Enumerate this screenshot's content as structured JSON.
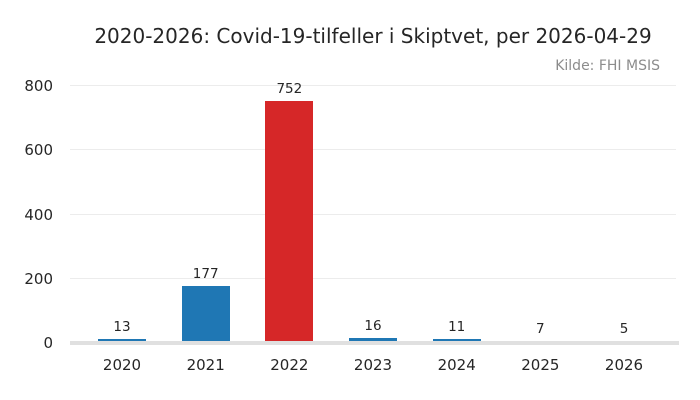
{
  "header": {
    "title": "2020-2026: Covid-19-tilfeller i Skiptvet, per 2026-04-29",
    "source": "Kilde: FHI MSIS"
  },
  "colors": {
    "bar_default": "#1f77b4",
    "bar_highlight": "#d62728",
    "grid": "#ececec",
    "zero_line": "#e0e0e0",
    "text": "#262626",
    "muted_text": "#8c8c8c",
    "background": "#ffffff"
  },
  "chart_data": {
    "type": "bar",
    "title": "2020-2026: Covid-19-tilfeller i Skiptvet, per 2026-04-29",
    "source": "Kilde: FHI MSIS",
    "categories": [
      "2020",
      "2021",
      "2022",
      "2023",
      "2024",
      "2025",
      "2026"
    ],
    "values": [
      13,
      177,
      752,
      16,
      11,
      7,
      5
    ],
    "value_labels": [
      "13",
      "177",
      "752",
      "16",
      "11",
      "7",
      "5"
    ],
    "highlight_index": 2,
    "xlabel": "",
    "ylabel": "",
    "yticks": [
      0,
      200,
      400,
      600,
      800
    ],
    "ytick_labels": [
      "0",
      "200",
      "400",
      "600",
      "800"
    ],
    "ylim": [
      0,
      800
    ],
    "grid": true,
    "legend": false,
    "bar_value_labels_shown": true
  }
}
